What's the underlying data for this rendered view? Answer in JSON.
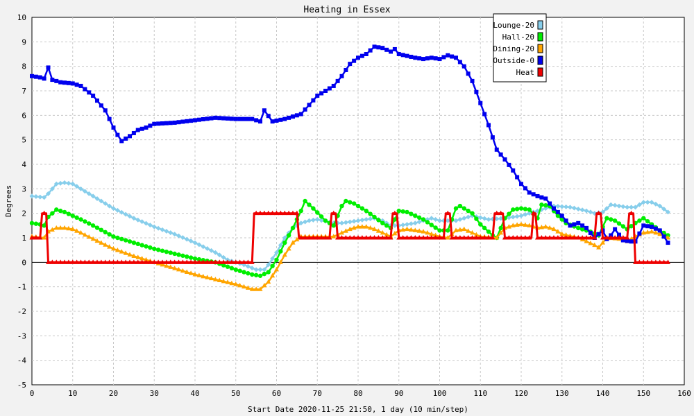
{
  "chart_data": {
    "type": "line",
    "title": "Heating in Essex",
    "xlabel": "Start Date 2020-11-25 21:50, 1 day (10 min/step)",
    "ylabel": "Degrees",
    "xlim": [
      0,
      160
    ],
    "ylim": [
      -5,
      10
    ],
    "x_ticks": [
      0,
      10,
      20,
      30,
      40,
      50,
      60,
      70,
      80,
      90,
      100,
      110,
      120,
      130,
      140,
      150,
      160
    ],
    "y_ticks": [
      -5,
      -4,
      -3,
      -2,
      -1,
      0,
      1,
      2,
      3,
      4,
      5,
      6,
      7,
      8,
      9,
      10
    ],
    "grid": true,
    "legend_position": "top-right",
    "series": [
      {
        "name": "Lounge-20",
        "color": "#87ceeb",
        "marker": "diamond",
        "points": [
          [
            0,
            2.7
          ],
          [
            3,
            2.65
          ],
          [
            4,
            2.8
          ],
          [
            6,
            3.2
          ],
          [
            8,
            3.25
          ],
          [
            10,
            3.2
          ],
          [
            12,
            3.0
          ],
          [
            15,
            2.7
          ],
          [
            20,
            2.2
          ],
          [
            25,
            1.8
          ],
          [
            30,
            1.45
          ],
          [
            35,
            1.15
          ],
          [
            40,
            0.8
          ],
          [
            45,
            0.4
          ],
          [
            48,
            0.1
          ],
          [
            52,
            -0.1
          ],
          [
            55,
            -0.3
          ],
          [
            57,
            -0.3
          ],
          [
            58,
            -0.1
          ],
          [
            60,
            0.4
          ],
          [
            62,
            1.0
          ],
          [
            64,
            1.4
          ],
          [
            66,
            1.6
          ],
          [
            68,
            1.7
          ],
          [
            70,
            1.75
          ],
          [
            74,
            1.6
          ],
          [
            76,
            1.6
          ],
          [
            80,
            1.7
          ],
          [
            84,
            1.8
          ],
          [
            86,
            1.7
          ],
          [
            88,
            1.5
          ],
          [
            90,
            1.5
          ],
          [
            94,
            1.6
          ],
          [
            98,
            1.8
          ],
          [
            100,
            1.7
          ],
          [
            104,
            1.7
          ],
          [
            108,
            1.9
          ],
          [
            112,
            1.75
          ],
          [
            116,
            1.8
          ],
          [
            120,
            1.9
          ],
          [
            124,
            2.1
          ],
          [
            128,
            2.3
          ],
          [
            132,
            2.25
          ],
          [
            136,
            2.1
          ],
          [
            138,
            2.0
          ],
          [
            140,
            2.05
          ],
          [
            142,
            2.35
          ],
          [
            146,
            2.25
          ],
          [
            148,
            2.25
          ],
          [
            150,
            2.45
          ],
          [
            152,
            2.45
          ],
          [
            154,
            2.3
          ],
          [
            156,
            2.05
          ]
        ]
      },
      {
        "name": "Hall-20",
        "color": "#00ee00",
        "marker": "circle",
        "points": [
          [
            0,
            1.6
          ],
          [
            2,
            1.55
          ],
          [
            3,
            1.5
          ],
          [
            4,
            1.85
          ],
          [
            6,
            2.15
          ],
          [
            8,
            2.05
          ],
          [
            10,
            1.9
          ],
          [
            12,
            1.75
          ],
          [
            15,
            1.5
          ],
          [
            20,
            1.05
          ],
          [
            25,
            0.8
          ],
          [
            30,
            0.55
          ],
          [
            35,
            0.35
          ],
          [
            40,
            0.15
          ],
          [
            45,
            0.0
          ],
          [
            50,
            -0.3
          ],
          [
            54,
            -0.5
          ],
          [
            56,
            -0.55
          ],
          [
            58,
            -0.4
          ],
          [
            60,
            0.1
          ],
          [
            62,
            0.8
          ],
          [
            64,
            1.4
          ],
          [
            66,
            2.1
          ],
          [
            67,
            2.5
          ],
          [
            69,
            2.2
          ],
          [
            72,
            1.7
          ],
          [
            74,
            1.5
          ],
          [
            76,
            2.3
          ],
          [
            77,
            2.5
          ],
          [
            79,
            2.4
          ],
          [
            82,
            2.1
          ],
          [
            86,
            1.6
          ],
          [
            88,
            1.4
          ],
          [
            90,
            2.1
          ],
          [
            92,
            2.05
          ],
          [
            96,
            1.75
          ],
          [
            100,
            1.3
          ],
          [
            102,
            1.3
          ],
          [
            104,
            2.2
          ],
          [
            105,
            2.3
          ],
          [
            108,
            2.0
          ],
          [
            110,
            1.55
          ],
          [
            113,
            1.1
          ],
          [
            114,
            1.0
          ],
          [
            116,
            1.8
          ],
          [
            118,
            2.15
          ],
          [
            120,
            2.2
          ],
          [
            122,
            2.15
          ],
          [
            124,
            1.8
          ],
          [
            125,
            2.35
          ],
          [
            127,
            2.3
          ],
          [
            129,
            1.9
          ],
          [
            131,
            1.6
          ],
          [
            134,
            1.4
          ],
          [
            137,
            1.25
          ],
          [
            139,
            1.1
          ],
          [
            141,
            1.8
          ],
          [
            143,
            1.7
          ],
          [
            146,
            1.35
          ],
          [
            148,
            1.6
          ],
          [
            150,
            1.8
          ],
          [
            152,
            1.55
          ],
          [
            154,
            1.3
          ],
          [
            156,
            1.1
          ]
        ]
      },
      {
        "name": "Dining-20",
        "color": "#ffa500",
        "marker": "triangle",
        "points": [
          [
            0,
            1.05
          ],
          [
            3,
            1.0
          ],
          [
            4,
            1.25
          ],
          [
            6,
            1.4
          ],
          [
            8,
            1.4
          ],
          [
            10,
            1.35
          ],
          [
            12,
            1.2
          ],
          [
            15,
            0.95
          ],
          [
            20,
            0.55
          ],
          [
            25,
            0.25
          ],
          [
            30,
            0.0
          ],
          [
            35,
            -0.25
          ],
          [
            40,
            -0.5
          ],
          [
            45,
            -0.7
          ],
          [
            50,
            -0.9
          ],
          [
            54,
            -1.1
          ],
          [
            56,
            -1.1
          ],
          [
            58,
            -0.8
          ],
          [
            60,
            -0.3
          ],
          [
            62,
            0.3
          ],
          [
            64,
            0.8
          ],
          [
            66,
            1.05
          ],
          [
            70,
            1.05
          ],
          [
            74,
            1.05
          ],
          [
            76,
            1.2
          ],
          [
            78,
            1.35
          ],
          [
            80,
            1.45
          ],
          [
            82,
            1.45
          ],
          [
            84,
            1.35
          ],
          [
            86,
            1.2
          ],
          [
            88,
            1.05
          ],
          [
            90,
            1.3
          ],
          [
            92,
            1.35
          ],
          [
            96,
            1.25
          ],
          [
            100,
            1.05
          ],
          [
            102,
            1.0
          ],
          [
            104,
            1.3
          ],
          [
            106,
            1.35
          ],
          [
            108,
            1.2
          ],
          [
            110,
            1.05
          ],
          [
            114,
            1.0
          ],
          [
            116,
            1.4
          ],
          [
            118,
            1.5
          ],
          [
            120,
            1.55
          ],
          [
            122,
            1.5
          ],
          [
            124,
            1.4
          ],
          [
            126,
            1.45
          ],
          [
            128,
            1.35
          ],
          [
            130,
            1.15
          ],
          [
            134,
            1.0
          ],
          [
            138,
            0.7
          ],
          [
            139,
            0.6
          ],
          [
            141,
            1.0
          ],
          [
            144,
            0.95
          ],
          [
            146,
            0.85
          ],
          [
            148,
            1.05
          ],
          [
            150,
            1.2
          ],
          [
            152,
            1.25
          ],
          [
            154,
            1.15
          ],
          [
            156,
            1.0
          ]
        ]
      },
      {
        "name": "Outside-0",
        "color": "#0000ee",
        "marker": "square",
        "points": [
          [
            0,
            7.6
          ],
          [
            2,
            7.55
          ],
          [
            3,
            7.5
          ],
          [
            4,
            7.95
          ],
          [
            5,
            7.45
          ],
          [
            7,
            7.35
          ],
          [
            10,
            7.3
          ],
          [
            12,
            7.2
          ],
          [
            15,
            6.8
          ],
          [
            18,
            6.2
          ],
          [
            20,
            5.5
          ],
          [
            21,
            5.2
          ],
          [
            22,
            4.95
          ],
          [
            24,
            5.15
          ],
          [
            26,
            5.4
          ],
          [
            28,
            5.5
          ],
          [
            30,
            5.65
          ],
          [
            35,
            5.7
          ],
          [
            40,
            5.8
          ],
          [
            45,
            5.9
          ],
          [
            50,
            5.85
          ],
          [
            54,
            5.85
          ],
          [
            56,
            5.75
          ],
          [
            57,
            6.2
          ],
          [
            59,
            5.75
          ],
          [
            62,
            5.85
          ],
          [
            66,
            6.05
          ],
          [
            70,
            6.8
          ],
          [
            72,
            7.0
          ],
          [
            74,
            7.2
          ],
          [
            76,
            7.6
          ],
          [
            78,
            8.1
          ],
          [
            80,
            8.35
          ],
          [
            82,
            8.5
          ],
          [
            84,
            8.8
          ],
          [
            86,
            8.75
          ],
          [
            88,
            8.6
          ],
          [
            89,
            8.7
          ],
          [
            90,
            8.5
          ],
          [
            94,
            8.35
          ],
          [
            96,
            8.3
          ],
          [
            98,
            8.35
          ],
          [
            100,
            8.3
          ],
          [
            102,
            8.45
          ],
          [
            104,
            8.35
          ],
          [
            106,
            8.0
          ],
          [
            108,
            7.4
          ],
          [
            110,
            6.5
          ],
          [
            112,
            5.6
          ],
          [
            114,
            4.6
          ],
          [
            116,
            4.2
          ],
          [
            118,
            3.75
          ],
          [
            120,
            3.2
          ],
          [
            122,
            2.85
          ],
          [
            124,
            2.7
          ],
          [
            126,
            2.6
          ],
          [
            128,
            2.2
          ],
          [
            130,
            1.9
          ],
          [
            132,
            1.5
          ],
          [
            134,
            1.6
          ],
          [
            136,
            1.4
          ],
          [
            138,
            1.0
          ],
          [
            140,
            1.3
          ],
          [
            141,
            0.95
          ],
          [
            142,
            1.1
          ],
          [
            143,
            1.35
          ],
          [
            145,
            0.9
          ],
          [
            147,
            0.85
          ],
          [
            148,
            0.85
          ],
          [
            150,
            1.5
          ],
          [
            152,
            1.45
          ],
          [
            154,
            1.3
          ],
          [
            156,
            0.8
          ]
        ]
      },
      {
        "name": "Heat",
        "color": "#ee0000",
        "marker": "triangle",
        "points": [
          [
            0,
            1
          ],
          [
            2,
            1
          ],
          [
            2.5,
            2
          ],
          [
            3.5,
            2
          ],
          [
            4,
            0
          ],
          [
            54,
            0
          ],
          [
            54.5,
            2
          ],
          [
            65,
            2
          ],
          [
            65.5,
            1
          ],
          [
            73,
            1
          ],
          [
            73.5,
            2
          ],
          [
            74.5,
            2
          ],
          [
            75,
            1
          ],
          [
            88,
            1
          ],
          [
            88.5,
            2
          ],
          [
            89.5,
            2
          ],
          [
            90,
            1
          ],
          [
            101,
            1
          ],
          [
            101.5,
            2
          ],
          [
            102.5,
            2
          ],
          [
            103,
            1
          ],
          [
            113,
            1
          ],
          [
            113.5,
            2
          ],
          [
            115.5,
            2
          ],
          [
            116,
            1
          ],
          [
            122.5,
            1
          ],
          [
            123,
            2
          ],
          [
            123.5,
            2
          ],
          [
            124,
            1
          ],
          [
            138,
            1
          ],
          [
            138.5,
            2
          ],
          [
            139.5,
            2
          ],
          [
            140,
            1
          ],
          [
            146,
            1
          ],
          [
            146.5,
            2
          ],
          [
            147.5,
            2
          ],
          [
            148,
            0
          ],
          [
            156,
            0
          ]
        ]
      }
    ]
  }
}
